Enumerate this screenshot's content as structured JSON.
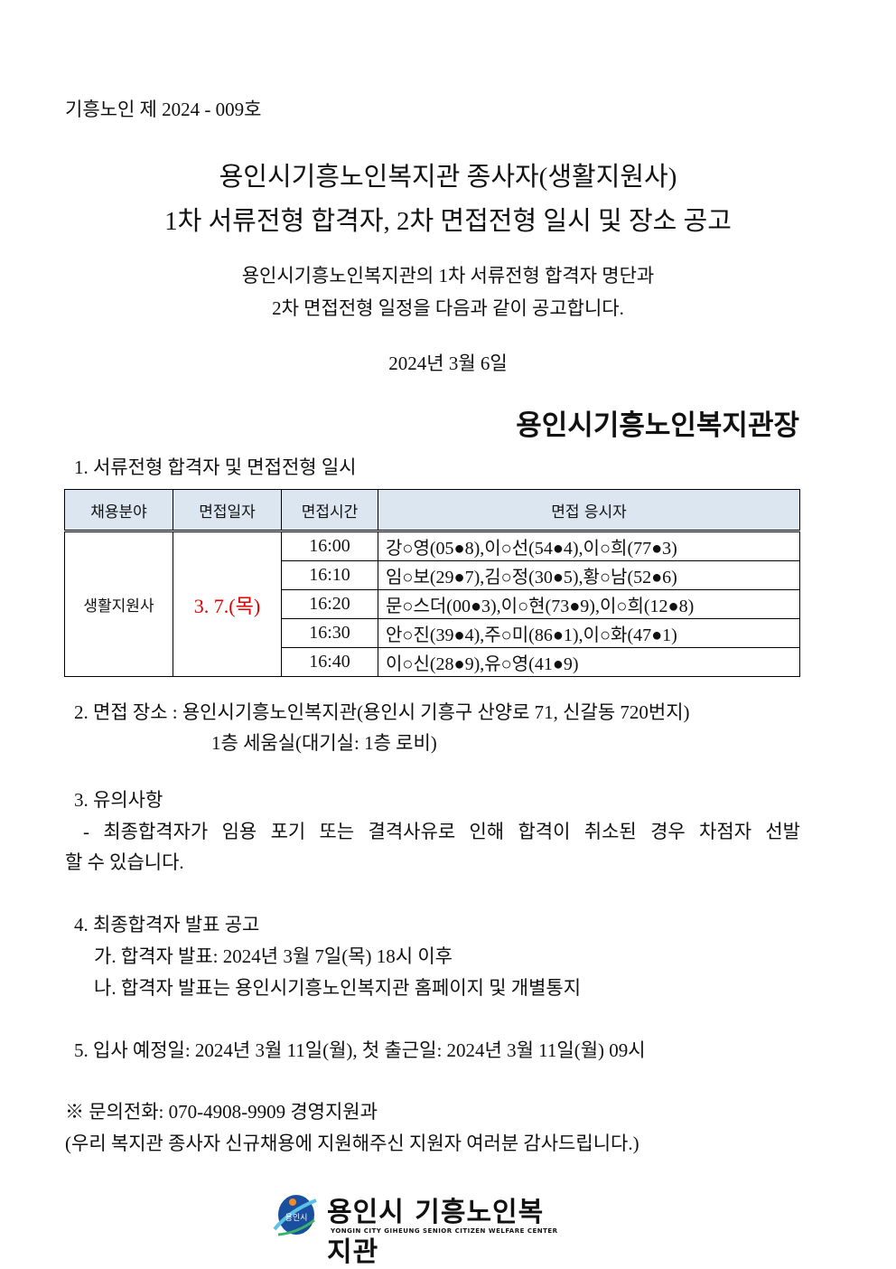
{
  "doc_number": "기흥노인 제  2024 - 009호",
  "title_line1": "용인시기흥노인복지관 종사자(생활지원사)",
  "title_line2": "1차 서류전형 합격자, 2차 면접전형 일시 및 장소 공고",
  "intro_line1": "용인시기흥노인복지관의 1차 서류전형 합격자 명단과",
  "intro_line2": "2차 면접전형 일정을 다음과 같이 공고합니다.",
  "date": "2024년  3월  6일",
  "signer": "용인시기흥노인복지관장",
  "section1": "1. 서류전형 합격자   및 면접전형 일시",
  "table": {
    "headers": [
      "채용분야",
      "면접일자",
      "면접시간",
      "면접 응시자"
    ],
    "field": "생활지원사",
    "interview_date": "3.  7.(목)",
    "rows": [
      {
        "time": "16:00",
        "names": "강○영(05●8),이○선(54●4),이○희(77●3)"
      },
      {
        "time": "16:10",
        "names": "임○보(29●7),김○정(30●5),황○남(52●6)"
      },
      {
        "time": "16:20",
        "names": "문○스더(00●3),이○현(73●9),이○희(12●8)"
      },
      {
        "time": "16:30",
        "names": "안○진(39●4),주○미(86●1),이○화(47●1)"
      },
      {
        "time": "16:40",
        "names": "이○신(28●9),유○영(41●9)"
      }
    ]
  },
  "section2_line1": "2. 면접 장소 : 용인시기흥노인복지관(용인시 기흥구 산양로 71, 신갈동 720번지)",
  "section2_line2": "1층 세움실(대기실: 1층 로비)",
  "section3": "3. 유의사항",
  "section3_line1": "- 최종합격자가 임용 포기 또는 결격사유로 인해 합격이 취소된 경우 차점자 선발",
  "section3_line2": "할 수 있습니다.",
  "section4": "4. 최종합격자 발표 공고",
  "section4_a": "가. 합격자 발표: 2024년 3월 7일(목) 18시 이후",
  "section4_b": "나. 합격자 발표는 용인시기흥노인복지관 홈페이지 및 개별통지",
  "section5": "5. 입사 예정일: 2024년 3월 11일(월), 첫 출근일: 2024년 3월 11일(월) 09시",
  "contact": "※ 문의전화: 070-4908-9909 경영지원과",
  "thanks": "(우리 복지관 종사자 신규채용에 지원해주신 지원자 여러분 감사드립니다.)",
  "logo": {
    "korean": "용인시 기흥노인복지관",
    "english": "YONGIN CITY GIHEUNG SENIOR CITIZEN WELFARE CENTER",
    "badge": "용인시"
  },
  "colors": {
    "date_red": "#e00000",
    "header_bg": "#dce6f1",
    "logo_blue": "#1a4fa0"
  }
}
